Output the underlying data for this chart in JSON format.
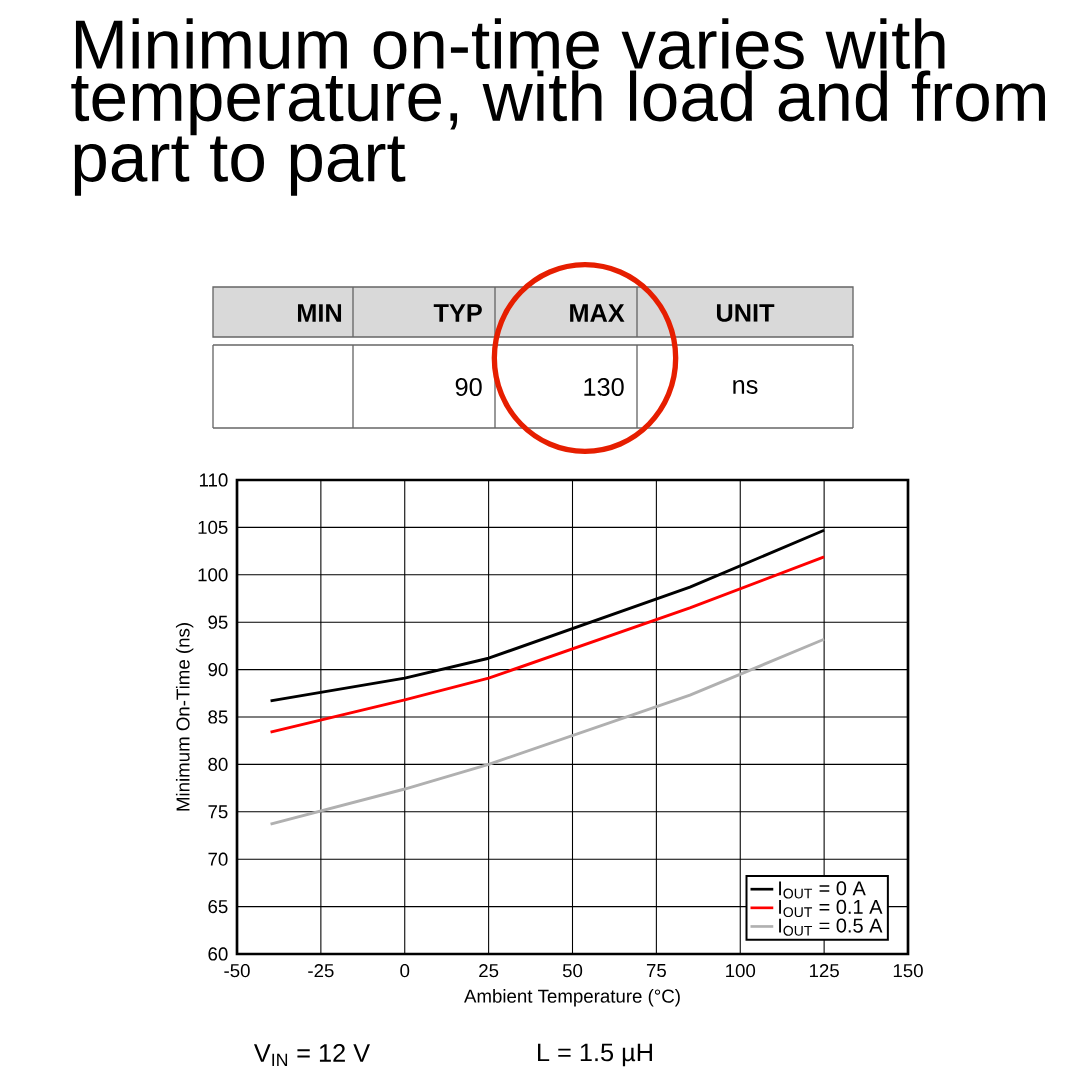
{
  "chart_data": {
    "type": "line",
    "title": "Minimum on-time varies with temperature, with load and from part to part",
    "xlabel": "Ambient Temperature (°C)",
    "ylabel": "Minimum On-Time (ns)",
    "x": [
      -40,
      0,
      25,
      85,
      125
    ],
    "series": [
      {
        "name": "I$_{OUT}$ = 0 A",
        "color": "#000000",
        "values": [
          86.7,
          89.1,
          91.2,
          98.7,
          104.7
        ]
      },
      {
        "name": "I$_{OUT}$ = 0.1 A",
        "color": "#ff0000",
        "values": [
          83.4,
          86.8,
          89.1,
          96.5,
          101.9
        ]
      },
      {
        "name": "I$_{OUT}$ = 0.5 A",
        "color": "#b0b0b0",
        "values": [
          73.7,
          77.4,
          80.0,
          87.3,
          93.2
        ]
      }
    ],
    "xlim": [
      -50,
      150
    ],
    "ylim": [
      60,
      110
    ],
    "xticks": [
      -50,
      -25,
      0,
      25,
      50,
      75,
      100,
      125,
      150
    ],
    "yticks": [
      60,
      65,
      70,
      75,
      80,
      85,
      90,
      95,
      100,
      105,
      110
    ],
    "grid": true,
    "legend": "bottom right",
    "line_style": "solid",
    "marker": "none",
    "annotations": [
      "MIN",
      "TYP",
      "MAX",
      "UNIT",
      "90",
      "130",
      "ns",
      "V$_{IN}$ = 12 V",
      "L = 1.5 µH"
    ]
  }
}
